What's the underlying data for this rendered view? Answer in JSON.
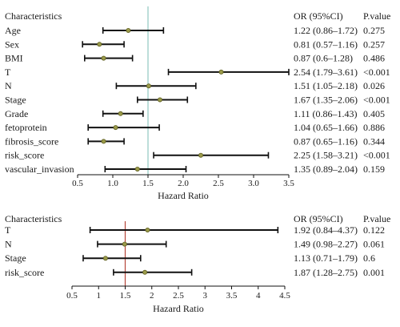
{
  "chart_data": [
    {
      "type": "forest",
      "header": {
        "characteristics": "Characteristics",
        "or_ci": "OR (95%CI)",
        "pvalue": "P.value"
      },
      "xlabel": "Hazard Ratio",
      "xlim": [
        0.5,
        3.5
      ],
      "xticks": [
        "0.5",
        "1.0",
        "1.5",
        "2.0",
        "2.5",
        "3.0",
        "3.5"
      ],
      "reference_line": 1.5,
      "reference_line_color": "#8fc9c0",
      "rows": [
        {
          "label": "Age",
          "or": 1.22,
          "lower": 0.86,
          "upper": 1.72,
          "or_ci": "1.22 (0.86–1.72)",
          "p": "0.275"
        },
        {
          "label": "Sex",
          "or": 0.81,
          "lower": 0.57,
          "upper": 1.16,
          "or_ci": "0.81 (0.57–1.16)",
          "p": "0.257"
        },
        {
          "label": "BMI",
          "or": 0.87,
          "lower": 0.6,
          "upper": 1.28,
          "or_ci": "0.87 (0.6–1.28)",
          "p": "0.486"
        },
        {
          "label": "T",
          "or": 2.54,
          "lower": 1.79,
          "upper": 3.61,
          "or_ci": "2.54 (1.79–3.61)",
          "p": "<0.001"
        },
        {
          "label": "N",
          "or": 1.51,
          "lower": 1.05,
          "upper": 2.18,
          "or_ci": "1.51 (1.05–2.18)",
          "p": "0.026"
        },
        {
          "label": "Stage",
          "or": 1.67,
          "lower": 1.35,
          "upper": 2.06,
          "or_ci": "1.67 (1.35–2.06)",
          "p": "<0.001"
        },
        {
          "label": "Grade",
          "or": 1.11,
          "lower": 0.86,
          "upper": 1.43,
          "or_ci": "1.11 (0.86–1.43)",
          "p": "0.405"
        },
        {
          "label": "fetoprotein",
          "or": 1.04,
          "lower": 0.65,
          "upper": 1.66,
          "or_ci": "1.04 (0.65–1.66)",
          "p": "0.886"
        },
        {
          "label": "fibrosis_score",
          "or": 0.87,
          "lower": 0.65,
          "upper": 1.16,
          "or_ci": "0.87 (0.65–1.16)",
          "p": "0.344"
        },
        {
          "label": "risk_score",
          "or": 2.25,
          "lower": 1.58,
          "upper": 3.21,
          "or_ci": "2.25 (1.58–3.21)",
          "p": "<0.001"
        },
        {
          "label": "vascular_invasion",
          "or": 1.35,
          "lower": 0.89,
          "upper": 2.04,
          "or_ci": "1.35 (0.89–2.04)",
          "p": "0.159"
        }
      ]
    },
    {
      "type": "forest",
      "header": {
        "characteristics": "Characteristics",
        "or_ci": "OR (95%CI)",
        "pvalue": "P.value"
      },
      "xlabel": "Hazard Ratio",
      "xlim": [
        0.5,
        4.5
      ],
      "xticks": [
        "0.5",
        "1",
        "1.5",
        "2",
        "2.5",
        "3",
        "3.5",
        "4",
        "4.5"
      ],
      "reference_line": 1.5,
      "reference_line_color": "#b5463a",
      "rows": [
        {
          "label": "T",
          "or": 1.92,
          "lower": 0.84,
          "upper": 4.37,
          "or_ci": "1.92 (0.84–4.37)",
          "p": "0.122"
        },
        {
          "label": "N",
          "or": 1.49,
          "lower": 0.98,
          "upper": 2.27,
          "or_ci": "1.49 (0.98–2.27)",
          "p": "0.061"
        },
        {
          "label": "Stage",
          "or": 1.13,
          "lower": 0.71,
          "upper": 1.79,
          "or_ci": "1.13 (0.71–1.79)",
          "p": "0.6"
        },
        {
          "label": "risk_score",
          "or": 1.87,
          "lower": 1.28,
          "upper": 2.75,
          "or_ci": "1.87 (1.28–2.75)",
          "p": "0.001"
        }
      ]
    }
  ]
}
